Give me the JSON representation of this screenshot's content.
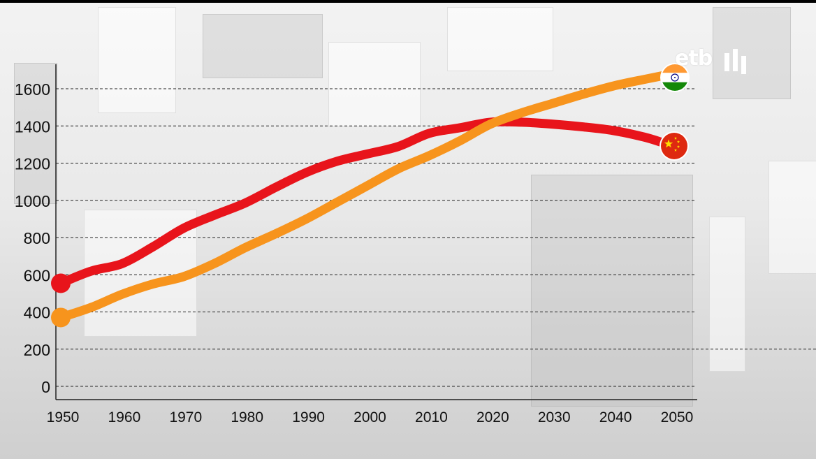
{
  "watermark": {
    "logo_text": "etb"
  },
  "colors": {
    "china": "#e8141b",
    "india": "#f7941d",
    "gridline": "#222222",
    "axis": "#222222",
    "tick_text": "#111111"
  },
  "chart_data": {
    "type": "line",
    "title": "",
    "xlabel": "",
    "ylabel": "",
    "xlim": [
      1950,
      2050
    ],
    "ylim": [
      0,
      1700
    ],
    "x_ticks": [
      1950,
      1960,
      1970,
      1980,
      1990,
      2000,
      2010,
      2020,
      2030,
      2040,
      2050
    ],
    "y_ticks": [
      0,
      200,
      400,
      600,
      800,
      1000,
      1200,
      1400,
      1600
    ],
    "grid": "horizontal-dashed",
    "series": [
      {
        "flag": "china-flag",
        "color": "#e8141b",
        "x": [
          1950,
          1955,
          1960,
          1965,
          1970,
          1975,
          1980,
          1985,
          1990,
          1995,
          2000,
          2005,
          2010,
          2015,
          2020,
          2025,
          2030,
          2035,
          2040,
          2045,
          2048
        ],
        "values": [
          554,
          620,
          660,
          750,
          850,
          920,
          985,
          1070,
          1150,
          1210,
          1250,
          1290,
          1360,
          1390,
          1420,
          1420,
          1410,
          1395,
          1375,
          1340,
          1310
        ]
      },
      {
        "flag": "india-flag",
        "color": "#f7941d",
        "x": [
          1950,
          1955,
          1960,
          1965,
          1970,
          1975,
          1980,
          1985,
          1990,
          1995,
          2000,
          2005,
          2010,
          2015,
          2020,
          2025,
          2030,
          2035,
          2040,
          2045,
          2048
        ],
        "values": [
          370,
          425,
          495,
          550,
          590,
          660,
          745,
          820,
          900,
          990,
          1080,
          1170,
          1240,
          1320,
          1410,
          1470,
          1520,
          1570,
          1615,
          1650,
          1670
        ]
      }
    ]
  }
}
